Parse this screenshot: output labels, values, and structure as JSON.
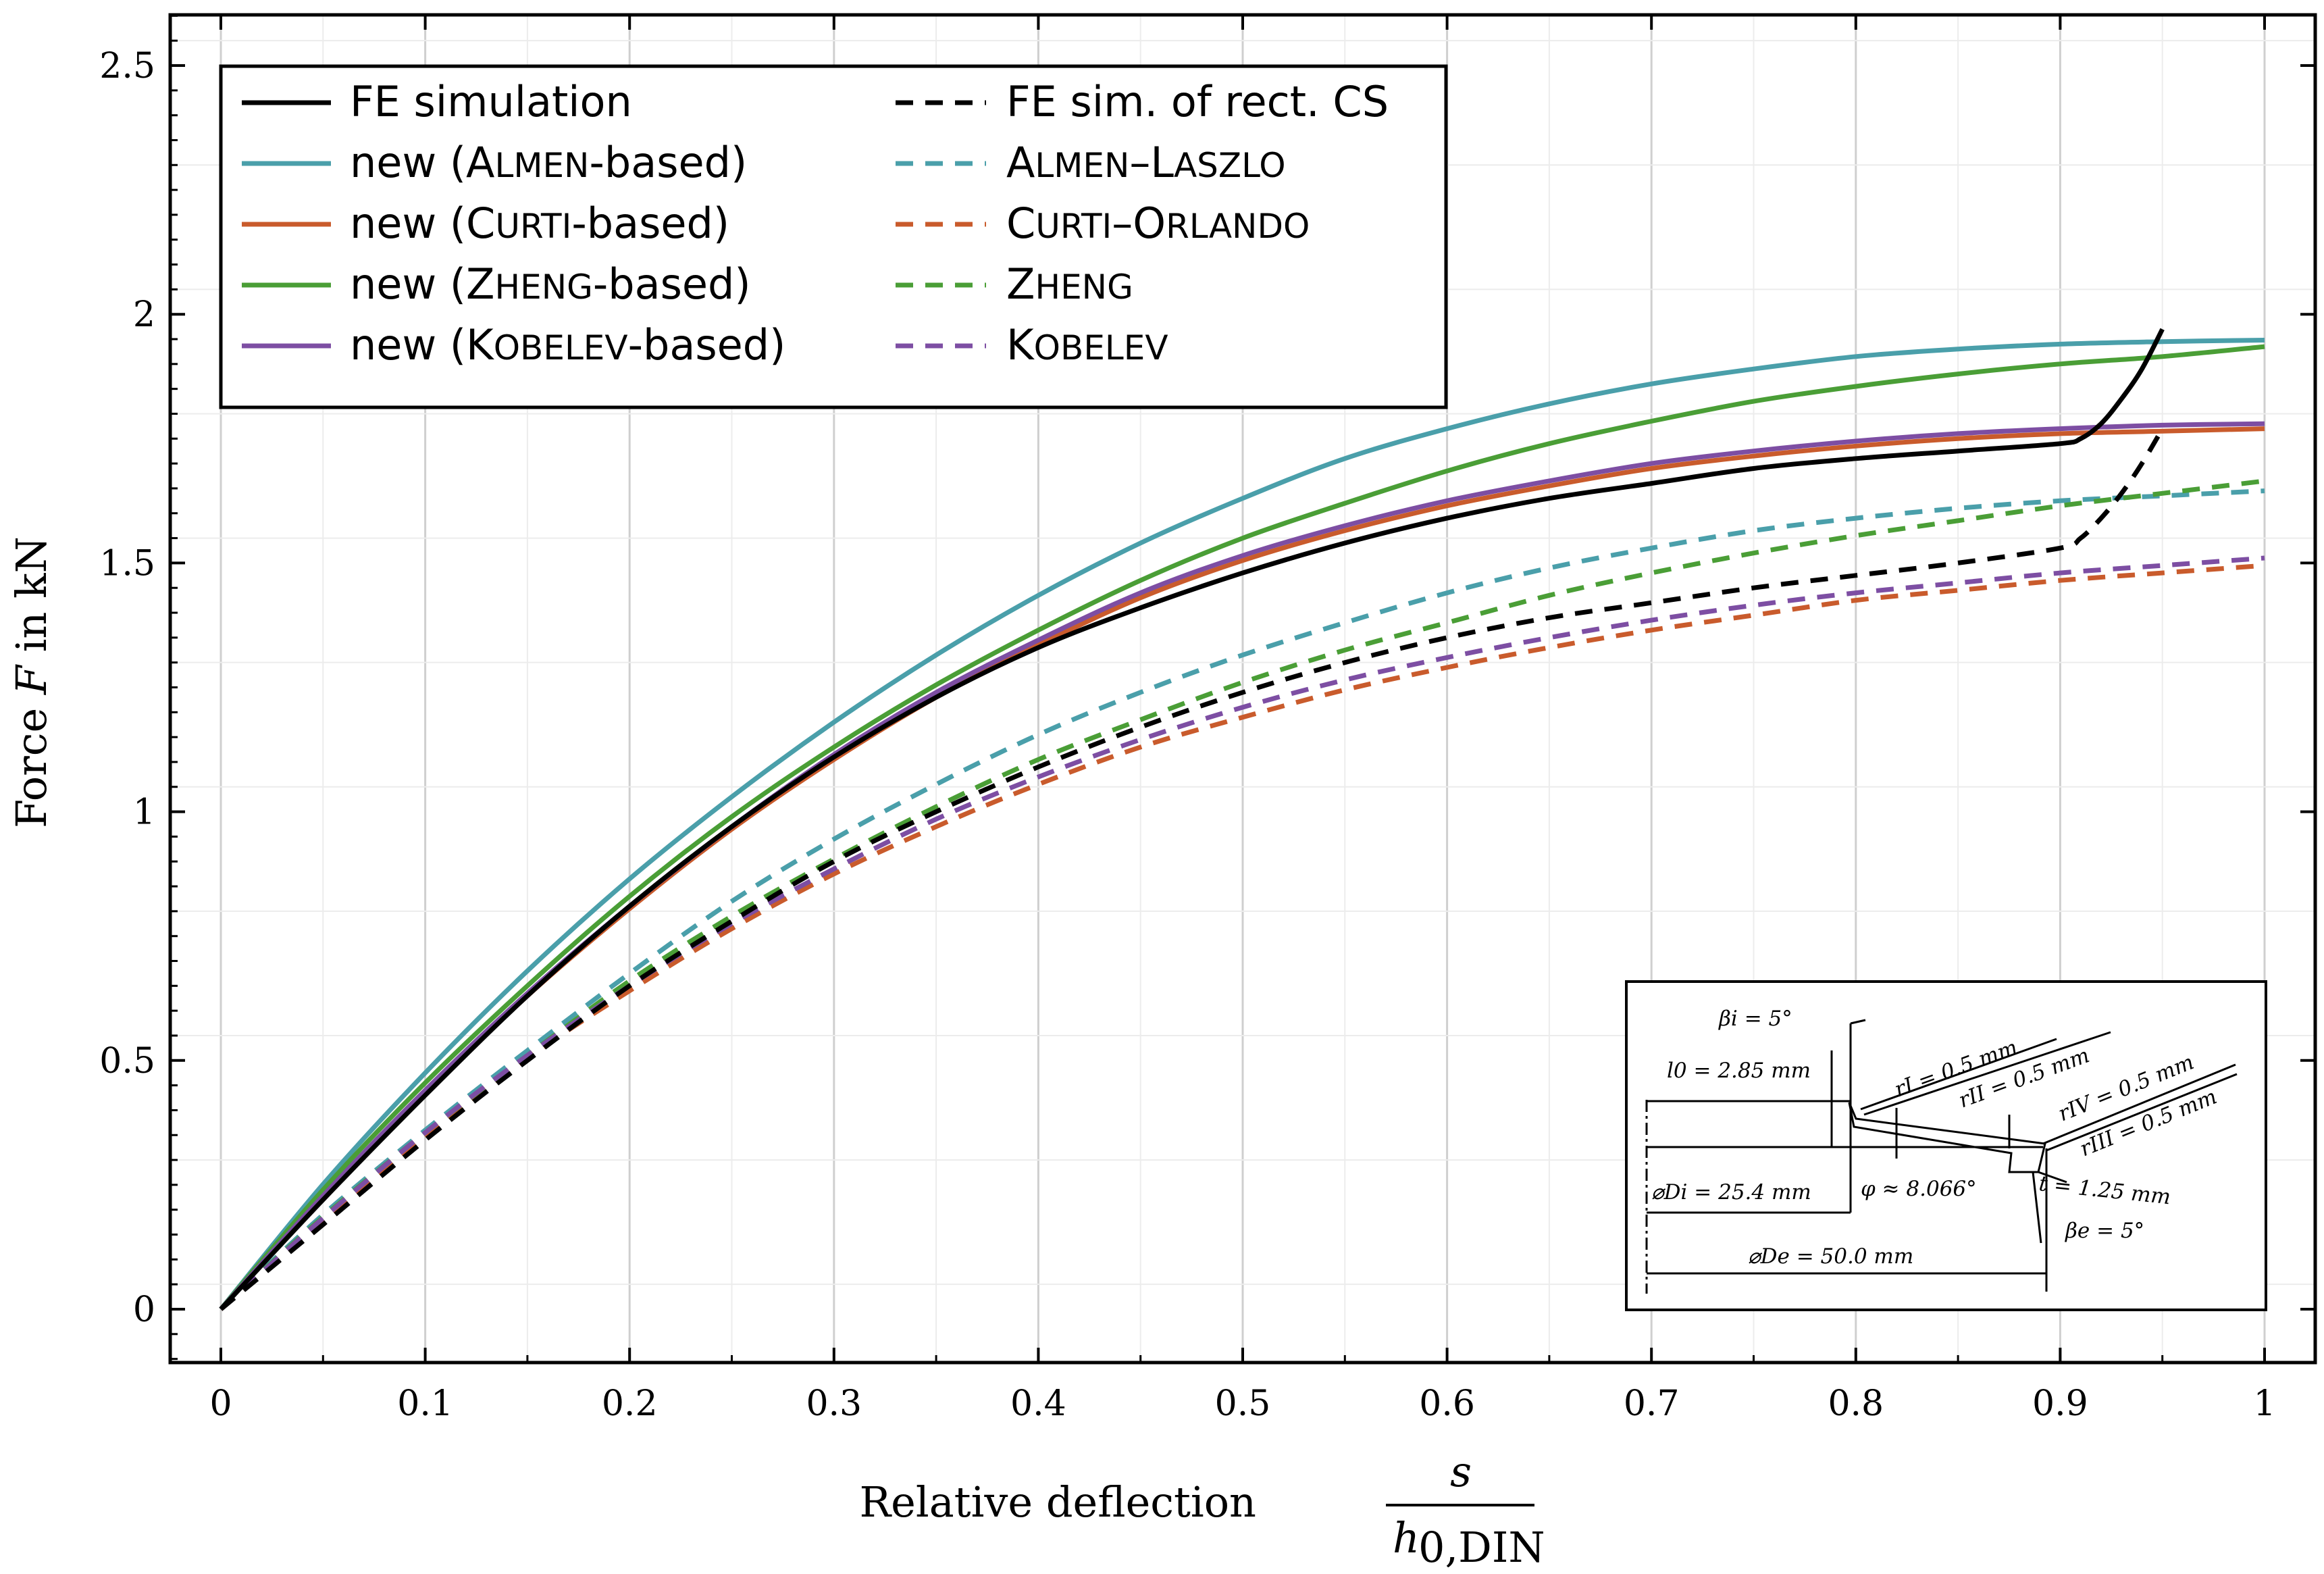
{
  "chart_data": {
    "type": "line",
    "title": "",
    "xlabel_prefix": "Relative deflection",
    "xlabel_numerator": "s",
    "xlabel_denominator_main": "h",
    "xlabel_denominator_sub": "0,DIN",
    "ylabel_prefix": "Force ",
    "ylabel_var": "F",
    "ylabel_suffix": " in kN",
    "xlim": [
      0,
      1
    ],
    "ylim": [
      -0.2,
      2.6
    ],
    "xticks": [
      0,
      0.1,
      0.2,
      0.3,
      0.4,
      0.5,
      0.6,
      0.7,
      0.8,
      0.9,
      1
    ],
    "xtick_labels": [
      "0",
      "0.1",
      "0.2",
      "0.3",
      "0.4",
      "0.5",
      "0.6",
      "0.7",
      "0.8",
      "0.9",
      "1"
    ],
    "yticks": [
      0,
      0.5,
      1,
      1.5,
      2,
      2.5
    ],
    "ytick_labels": [
      "0",
      "0.5",
      "1",
      "1.5",
      "2",
      "2.5"
    ],
    "grid": true,
    "legend_location": "top-left",
    "x": [
      0,
      0.05,
      0.1,
      0.15,
      0.2,
      0.25,
      0.3,
      0.35,
      0.4,
      0.45,
      0.5,
      0.55,
      0.6,
      0.65,
      0.7,
      0.75,
      0.8,
      0.85,
      0.9,
      0.95,
      1
    ],
    "series": [
      {
        "name": "FE simulation",
        "color": "#000000",
        "dash": false,
        "x": [
          0,
          0.05,
          0.1,
          0.15,
          0.2,
          0.25,
          0.3,
          0.35,
          0.4,
          0.45,
          0.5,
          0.55,
          0.6,
          0.65,
          0.7,
          0.75,
          0.8,
          0.85,
          0.9,
          0.91,
          0.92,
          0.93,
          0.94,
          0.95
        ],
        "y": [
          0,
          0.22,
          0.43,
          0.63,
          0.81,
          0.97,
          1.11,
          1.23,
          1.33,
          1.41,
          1.48,
          1.54,
          1.59,
          1.63,
          1.66,
          1.69,
          1.71,
          1.725,
          1.74,
          1.75,
          1.78,
          1.83,
          1.89,
          1.97
        ]
      },
      {
        "name": "FE sim. of rect. CS",
        "color": "#000000",
        "dash": true,
        "x": [
          0,
          0.05,
          0.1,
          0.15,
          0.2,
          0.25,
          0.3,
          0.35,
          0.4,
          0.45,
          0.5,
          0.55,
          0.6,
          0.65,
          0.7,
          0.75,
          0.8,
          0.85,
          0.9,
          0.91,
          0.92,
          0.93,
          0.94,
          0.95
        ],
        "y": [
          0,
          0.17,
          0.34,
          0.5,
          0.65,
          0.78,
          0.9,
          1.0,
          1.09,
          1.17,
          1.24,
          1.3,
          1.35,
          1.39,
          1.42,
          1.45,
          1.475,
          1.5,
          1.53,
          1.55,
          1.59,
          1.64,
          1.7,
          1.77
        ]
      },
      {
        "name": "new (Almen-based)",
        "sc_prefix": "new (A",
        "sc_small": "LMEN",
        "sc_suffix": "-based)",
        "color": "#4a9faa",
        "dash": false,
        "y": [
          0,
          0.251,
          0.475,
          0.68,
          0.865,
          1.03,
          1.18,
          1.315,
          1.435,
          1.54,
          1.63,
          1.71,
          1.77,
          1.82,
          1.86,
          1.89,
          1.915,
          1.93,
          1.94,
          1.945,
          1.948
        ]
      },
      {
        "name": "Almen–Laszlo",
        "color": "#4a9faa",
        "dash": true,
        "y": [
          0,
          0.19,
          0.36,
          0.52,
          0.675,
          0.82,
          0.945,
          1.055,
          1.155,
          1.24,
          1.315,
          1.38,
          1.44,
          1.49,
          1.53,
          1.565,
          1.59,
          1.61,
          1.625,
          1.635,
          1.645
        ]
      },
      {
        "name": "new (Curti-based)",
        "sc_prefix": "new (C",
        "sc_small": "URTI",
        "sc_suffix": "-based)",
        "color": "#c95b2c",
        "dash": false,
        "y": [
          0,
          0.225,
          0.435,
          0.63,
          0.805,
          0.965,
          1.105,
          1.23,
          1.335,
          1.43,
          1.505,
          1.565,
          1.615,
          1.655,
          1.69,
          1.715,
          1.735,
          1.75,
          1.76,
          1.765,
          1.77
        ]
      },
      {
        "name": "Curti–Orlando",
        "color": "#c95b2c",
        "dash": true,
        "y": [
          0,
          0.18,
          0.35,
          0.505,
          0.64,
          0.765,
          0.875,
          0.97,
          1.055,
          1.13,
          1.19,
          1.245,
          1.29,
          1.33,
          1.365,
          1.395,
          1.425,
          1.445,
          1.465,
          1.48,
          1.495
        ]
      },
      {
        "name": "new (Zheng-based)",
        "sc_prefix": "new (Z",
        "sc_small": "HENG",
        "sc_suffix": "-based)",
        "color": "#4a9e36",
        "dash": false,
        "y": [
          0,
          0.24,
          0.455,
          0.65,
          0.83,
          0.99,
          1.13,
          1.255,
          1.365,
          1.465,
          1.55,
          1.62,
          1.685,
          1.74,
          1.785,
          1.825,
          1.855,
          1.88,
          1.9,
          1.915,
          1.935
        ]
      },
      {
        "name": "Zheng",
        "color": "#4a9e36",
        "dash": true,
        "y": [
          0,
          0.185,
          0.355,
          0.51,
          0.66,
          0.79,
          0.905,
          1.01,
          1.105,
          1.185,
          1.26,
          1.325,
          1.38,
          1.435,
          1.48,
          1.52,
          1.555,
          1.585,
          1.615,
          1.64,
          1.665
        ]
      },
      {
        "name": "new (Kobelev-based)",
        "sc_prefix": "new (K",
        "sc_small": "OBELEV",
        "sc_suffix": "-based)",
        "color": "#7d4ea3",
        "dash": false,
        "y": [
          0,
          0.228,
          0.44,
          0.635,
          0.81,
          0.97,
          1.115,
          1.24,
          1.345,
          1.44,
          1.515,
          1.575,
          1.625,
          1.665,
          1.7,
          1.725,
          1.745,
          1.76,
          1.77,
          1.777,
          1.78
        ]
      },
      {
        "name": "Kobelev",
        "color": "#7d4ea3",
        "dash": true,
        "y": [
          0,
          0.183,
          0.355,
          0.51,
          0.65,
          0.775,
          0.885,
          0.985,
          1.07,
          1.145,
          1.21,
          1.265,
          1.31,
          1.35,
          1.385,
          1.415,
          1.44,
          1.46,
          1.48,
          1.495,
          1.51
        ]
      }
    ],
    "legend_left": [
      {
        "prefix": "FE simulation",
        "small": "",
        "suffix": "",
        "color": "#000000",
        "dash": false
      },
      {
        "prefix": "new (A",
        "small": "LMEN",
        "suffix": "-based)",
        "color": "#4a9faa",
        "dash": false
      },
      {
        "prefix": "new (C",
        "small": "URTI",
        "suffix": "-based)",
        "color": "#c95b2c",
        "dash": false
      },
      {
        "prefix": "new (Z",
        "small": "HENG",
        "suffix": "-based)",
        "color": "#4a9e36",
        "dash": false
      },
      {
        "prefix": "new (K",
        "small": "OBELEV",
        "suffix": "-based)",
        "color": "#7d4ea3",
        "dash": false
      }
    ],
    "legend_right": [
      {
        "parts": [
          [
            "FE sim. of rect. CS",
            false
          ]
        ],
        "color": "#000000",
        "dash": true
      },
      {
        "parts": [
          [
            "A",
            false
          ],
          [
            "LMEN",
            true
          ],
          [
            "–L",
            false
          ],
          [
            "ASZLO",
            true
          ]
        ],
        "color": "#4a9faa",
        "dash": true
      },
      {
        "parts": [
          [
            "C",
            false
          ],
          [
            "URTI",
            true
          ],
          [
            "–O",
            false
          ],
          [
            "RLANDO",
            true
          ]
        ],
        "color": "#c95b2c",
        "dash": true
      },
      {
        "parts": [
          [
            "Z",
            false
          ],
          [
            "HENG",
            true
          ]
        ],
        "color": "#4a9e36",
        "dash": true
      },
      {
        "parts": [
          [
            "K",
            false
          ],
          [
            "OBELEV",
            true
          ]
        ],
        "color": "#7d4ea3",
        "dash": true
      }
    ],
    "inset_labels": {
      "beta_i": "βi = 5°",
      "l0": "l0 = 2.85 mm",
      "r_I": "rI = 0.5 mm",
      "r_II": "rII = 0.5 mm",
      "r_IV": "rIV = 0.5 mm",
      "r_III": "rIII = 0.5 mm",
      "D_i": "⌀Di = 25.4 mm",
      "phi": "φ ≈ 8.066°",
      "t": "t = 1.25 mm",
      "beta_e": "βe = 5°",
      "D_e": "⌀De = 50.0 mm"
    }
  }
}
